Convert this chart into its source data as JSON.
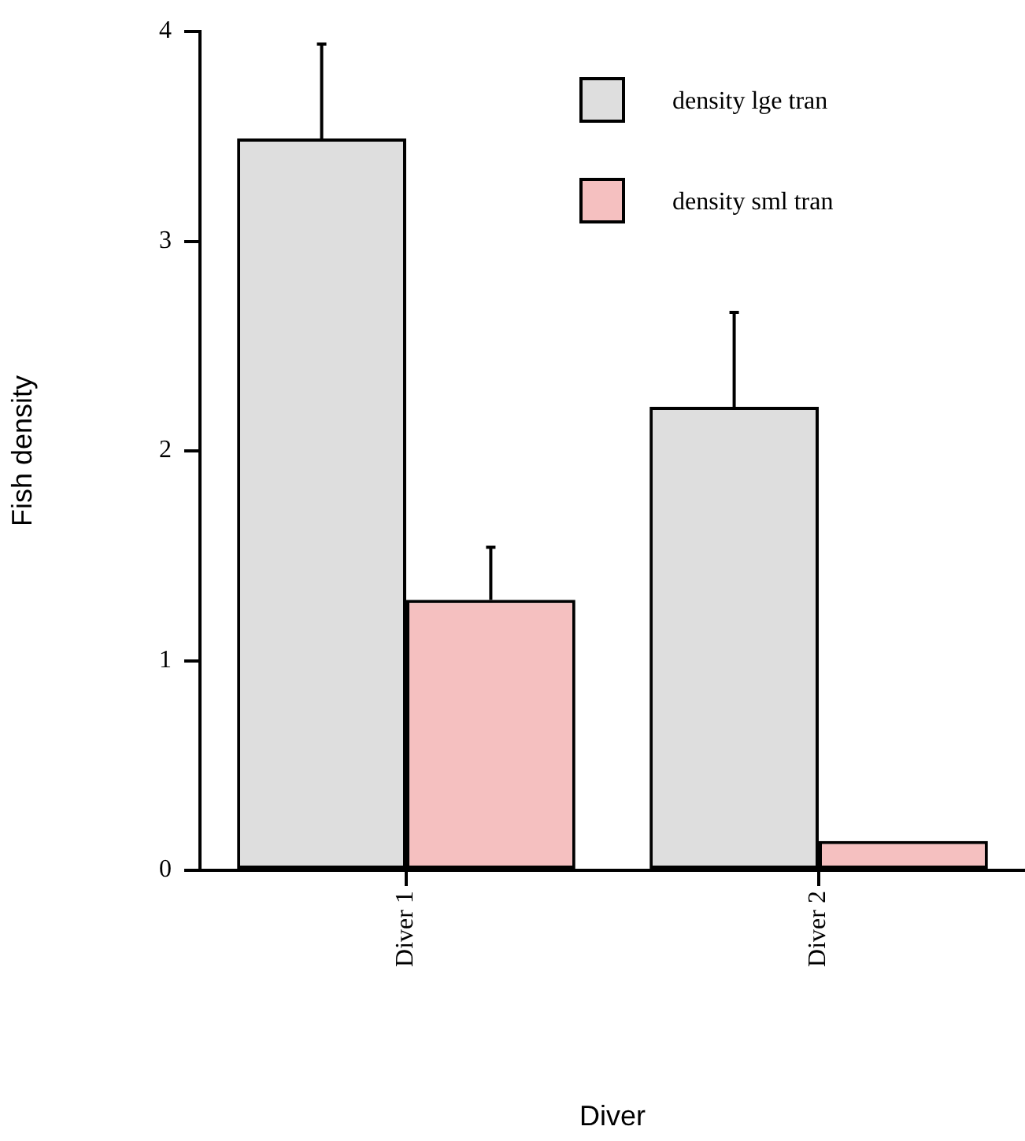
{
  "chart_data": {
    "type": "bar",
    "xlabel": "Diver",
    "ylabel": "Fish density",
    "categories": [
      "Diver 1",
      "Diver 2"
    ],
    "series": [
      {
        "name": "density lge tran",
        "color": "#dedede",
        "values": [
          3.49,
          2.21
        ],
        "errors": [
          [
            3.49,
            3.94
          ],
          [
            2.21,
            2.66
          ]
        ]
      },
      {
        "name": "density sml tran",
        "color": "#f5c0c0",
        "values": [
          1.29,
          0.14
        ],
        "errors": [
          [
            1.29,
            1.54
          ],
          null
        ]
      }
    ],
    "ylim": [
      0,
      4
    ],
    "yticks": [
      0,
      1,
      2,
      3,
      4
    ],
    "grid": false,
    "legend": "top right"
  }
}
